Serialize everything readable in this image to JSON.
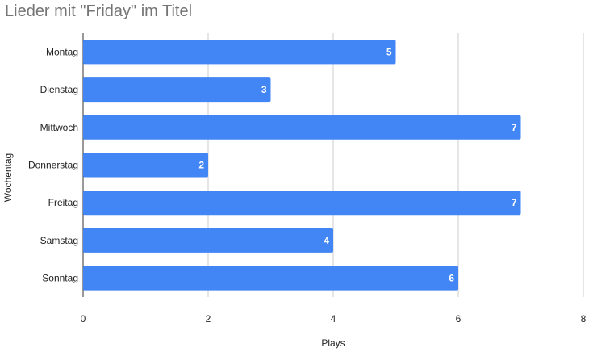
{
  "chart_data": {
    "type": "bar",
    "orientation": "horizontal",
    "title": "Lieder mit \"Friday\" im Titel",
    "xlabel": "Plays",
    "ylabel": "Wochentag",
    "categories": [
      "Montag",
      "Dienstag",
      "Mittwoch",
      "Donnerstag",
      "Freitag",
      "Samstag",
      "Sonntag"
    ],
    "values": [
      5,
      3,
      7,
      2,
      7,
      4,
      6
    ],
    "xlim": [
      0,
      8
    ],
    "xticks": [
      "0",
      "2",
      "4",
      "6",
      "8"
    ],
    "grid": true,
    "data_labels": true,
    "bar_color": "#4285f4",
    "legend": "none"
  }
}
